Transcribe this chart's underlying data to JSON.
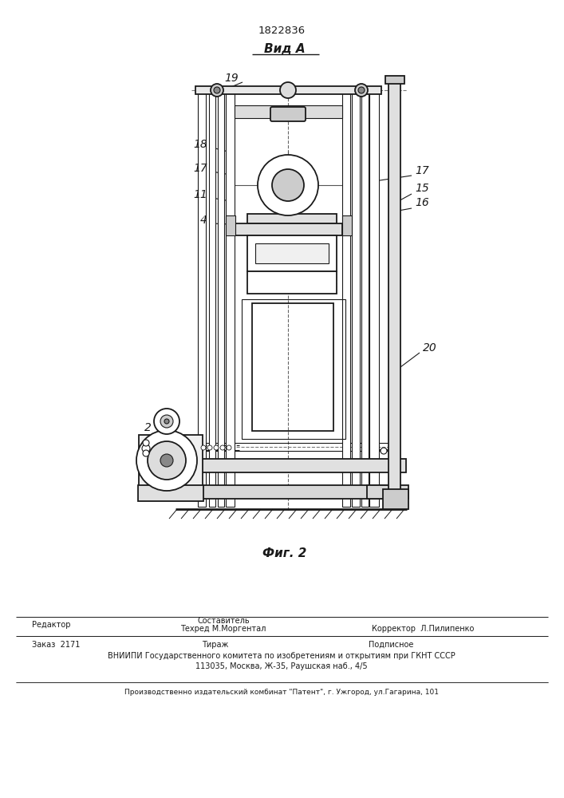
{
  "patent_number": "1822836",
  "view_label": "Вид А",
  "fig_label": "Фиг. 2",
  "bg_color": "#ffffff",
  "line_color": "#1a1a1a",
  "footer": {
    "составитель_label": "Составитель",
    "редактор_label": "Редактор",
    "техред_label": "Техред М.Моргентал",
    "корректор_label": "Корректор  Л.Пилипенко",
    "заказ_label": "Заказ  2171",
    "тираж_label": "Тираж",
    "подписное_label": "Подписное",
    "вниипи_line1": "ВНИИПИ Государственного комитета по изобретениям и открытиям при ГКНТ СССР",
    "вниипи_line2": "113035, Москва, Ж-35, Раушская наб., 4/5",
    "производство_line": "Производственно издательский комбинат \"Патент\", г. Ужгород, ул.Гагарина, 101"
  }
}
